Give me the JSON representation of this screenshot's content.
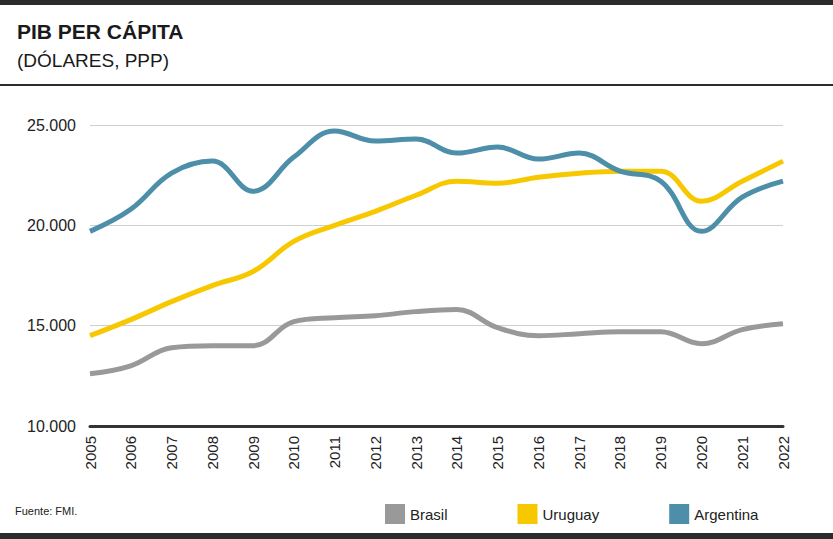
{
  "chart_data": {
    "type": "line",
    "title": "PIB PER CÁPITA",
    "subtitle": "(DÓLARES, PPP)",
    "source": "Fuente: FMI.",
    "categories": [
      "2005",
      "2006",
      "2007",
      "2008",
      "2009",
      "2010",
      "2011",
      "2012",
      "2013",
      "2014",
      "2015",
      "2016",
      "2017",
      "2018",
      "2019",
      "2020",
      "2021",
      "2022"
    ],
    "series": [
      {
        "name": "Brasil",
        "color": "#999999",
        "values": [
          12600,
          13000,
          13900,
          14000,
          14000,
          15200,
          15400,
          15500,
          15700,
          15800,
          14900,
          14500,
          14600,
          14700,
          14700,
          14100,
          14800,
          15100
        ]
      },
      {
        "name": "Uruguay",
        "color": "#f7c800",
        "values": [
          14500,
          15300,
          16200,
          17000,
          17700,
          19200,
          20000,
          20700,
          21500,
          22200,
          22100,
          22400,
          22600,
          22700,
          22700,
          21200,
          22200,
          23200
        ]
      },
      {
        "name": "Argentina",
        "color": "#4d8ea9",
        "values": [
          19700,
          20800,
          22600,
          23200,
          21700,
          23400,
          24700,
          24200,
          24300,
          23600,
          23900,
          23300,
          23600,
          22700,
          22200,
          19700,
          21400,
          22200
        ]
      }
    ],
    "ylim": [
      10000,
      25000
    ],
    "yticks": [
      {
        "value": 10000,
        "label": "10.000"
      },
      {
        "value": 15000,
        "label": "15.000"
      },
      {
        "value": 20000,
        "label": "20.000"
      },
      {
        "value": 25000,
        "label": "25.000"
      }
    ],
    "grid": true,
    "legend": "bottom",
    "line_style": "smooth"
  }
}
